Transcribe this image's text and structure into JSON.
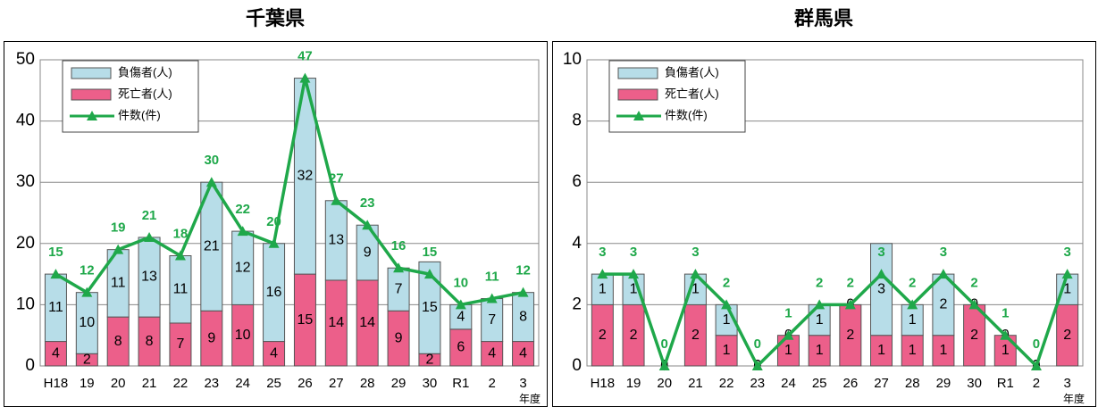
{
  "chart_data": [
    {
      "type": "combo",
      "title": "千葉県",
      "x_label": "年度",
      "categories": [
        "H18",
        "19",
        "20",
        "21",
        "22",
        "23",
        "24",
        "25",
        "26",
        "27",
        "28",
        "29",
        "30",
        "R1",
        "2",
        "3"
      ],
      "series": [
        {
          "name": "死亡者(人)",
          "type": "bar",
          "color": "#ec5f8a",
          "values": [
            4,
            2,
            8,
            8,
            7,
            9,
            10,
            4,
            15,
            14,
            14,
            9,
            2,
            6,
            4,
            4
          ]
        },
        {
          "name": "負傷者(人)",
          "type": "bar",
          "color": "#b7dde8",
          "values": [
            11,
            10,
            11,
            13,
            11,
            21,
            12,
            16,
            32,
            13,
            9,
            7,
            15,
            4,
            7,
            8
          ]
        },
        {
          "name": "件数(件)",
          "type": "line",
          "color": "#1fa84a",
          "values": [
            15,
            12,
            19,
            21,
            18,
            30,
            22,
            20,
            47,
            27,
            23,
            16,
            15,
            10,
            11,
            12
          ]
        }
      ],
      "ylim": [
        0,
        50
      ],
      "yticks": [
        0,
        10,
        20,
        30,
        40,
        50
      ],
      "grid": true
    },
    {
      "type": "combo",
      "title": "群馬県",
      "x_label": "年度",
      "categories": [
        "H18",
        "19",
        "20",
        "21",
        "22",
        "23",
        "24",
        "25",
        "26",
        "27",
        "28",
        "29",
        "30",
        "R1",
        "2",
        "3"
      ],
      "series": [
        {
          "name": "死亡者(人)",
          "type": "bar",
          "color": "#ec5f8a",
          "values": [
            2,
            2,
            0,
            2,
            1,
            0,
            1,
            1,
            2,
            1,
            1,
            1,
            2,
            1,
            0,
            2
          ]
        },
        {
          "name": "負傷者(人)",
          "type": "bar",
          "color": "#b7dde8",
          "values": [
            1,
            1,
            0,
            1,
            1,
            0,
            0,
            1,
            0,
            3,
            1,
            2,
            0,
            0,
            0,
            1
          ]
        },
        {
          "name": "件数(件)",
          "type": "line",
          "color": "#1fa84a",
          "values": [
            3,
            3,
            0,
            3,
            2,
            0,
            1,
            2,
            2,
            3,
            2,
            3,
            2,
            1,
            0,
            3
          ]
        }
      ],
      "ylim": [
        0,
        10
      ],
      "yticks": [
        0,
        2,
        4,
        6,
        8,
        10
      ],
      "grid": true
    }
  ]
}
